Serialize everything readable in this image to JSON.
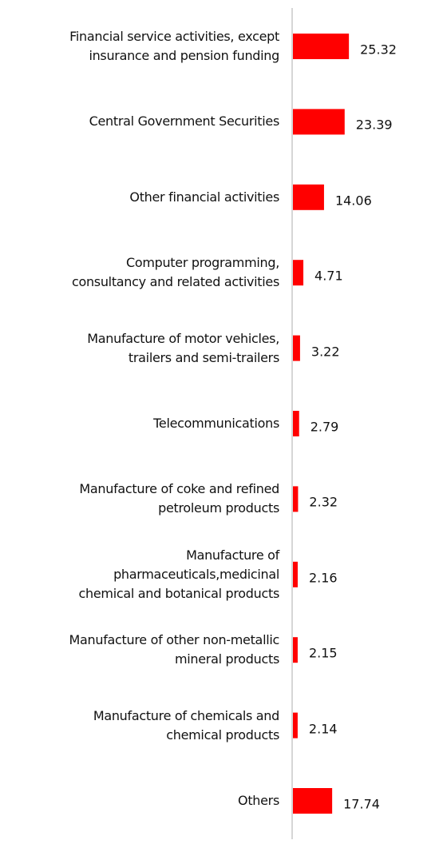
{
  "chart_data": {
    "type": "bar",
    "orientation": "horizontal",
    "color": "#ff0000",
    "categories": [
      "Financial service activities, except\ninsurance and pension funding",
      "Central Government Securities",
      "Other financial activities",
      "Computer programming,\nconsultancy and related activities",
      "Manufacture of motor vehicles,\ntrailers and semi-trailers",
      "Telecommunications",
      "Manufacture of coke and refined\npetroleum products",
      "Manufacture of\npharmaceuticals,medicinal\nchemical and botanical products",
      "Manufacture of other non-metallic\nmineral products",
      "Manufacture of chemicals and\nchemical products",
      "Others"
    ],
    "values": [
      25.32,
      23.39,
      14.06,
      4.71,
      3.22,
      2.79,
      2.32,
      2.16,
      2.15,
      2.14,
      17.74
    ],
    "value_labels": [
      "25.32",
      "23.39",
      "14.06",
      "4.71",
      "3.22",
      "2.79",
      "2.32",
      "2.16",
      "2.15",
      "2.14",
      "17.74"
    ]
  }
}
